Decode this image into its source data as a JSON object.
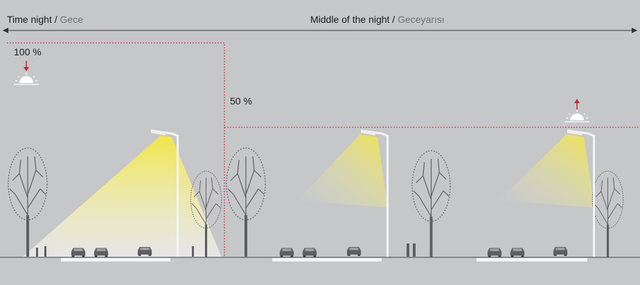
{
  "header": {
    "left": {
      "title": "Time night",
      "separator": "/",
      "translation": "Gece"
    },
    "right": {
      "title": "Middle of the night",
      "separator": "/",
      "translation": "Geceyarısı"
    }
  },
  "levels": [
    {
      "label": "100 %"
    },
    {
      "label": "50 %"
    }
  ]
}
